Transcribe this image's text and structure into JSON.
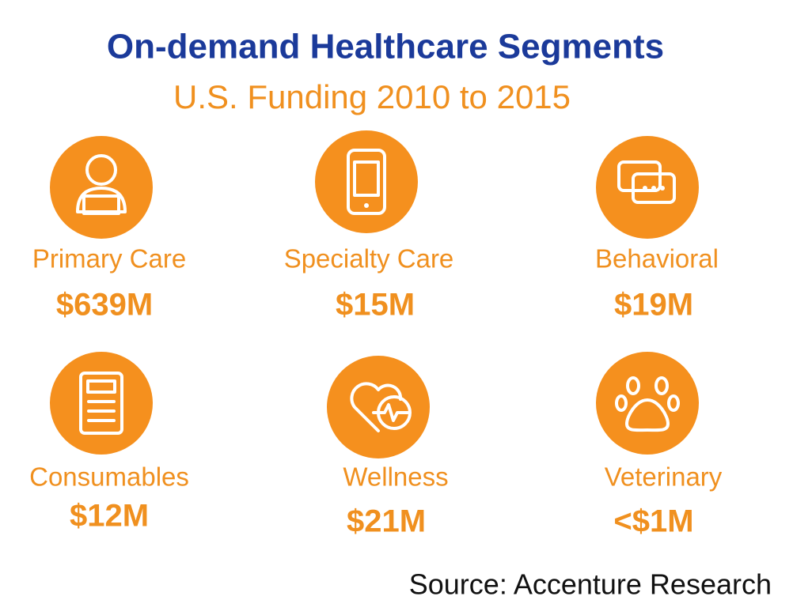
{
  "header": {
    "title": "On-demand Healthcare Segments",
    "subtitle": "U.S. Funding 2010 to 2015"
  },
  "segments": [
    {
      "label": "Primary Care",
      "amount": "$639M"
    },
    {
      "label": "Specialty Care",
      "amount": "$15M"
    },
    {
      "label": "Behavioral",
      "amount": "$19M"
    },
    {
      "label": "Consumables",
      "amount": "$12M"
    },
    {
      "label": "Wellness",
      "amount": "$21M"
    },
    {
      "label": "Veterinary",
      "amount": "<$1M"
    }
  ],
  "source": "Source: Accenture Research"
}
